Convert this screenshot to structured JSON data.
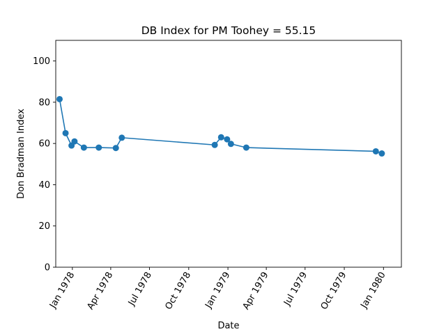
{
  "chart_data": {
    "type": "line",
    "title": "DB Index for PM Toohey = 55.15",
    "xlabel": "Date",
    "ylabel": "Don Bradman Index",
    "ylim": [
      0,
      110
    ],
    "xlim": [
      "1977-11-23",
      "1980-02-12"
    ],
    "grid": false,
    "legend": "none",
    "x_ticks": [
      {
        "date": "1978-01-01",
        "label": "Jan 1978"
      },
      {
        "date": "1978-04-01",
        "label": "Apr 1978"
      },
      {
        "date": "1978-07-01",
        "label": "Jul 1978"
      },
      {
        "date": "1978-10-01",
        "label": "Oct 1978"
      },
      {
        "date": "1979-01-01",
        "label": "Jan 1979"
      },
      {
        "date": "1979-04-01",
        "label": "Apr 1979"
      },
      {
        "date": "1979-07-01",
        "label": "Jul 1979"
      },
      {
        "date": "1979-10-01",
        "label": "Oct 1979"
      },
      {
        "date": "1980-01-01",
        "label": "Jan 1980"
      }
    ],
    "y_ticks": [
      0,
      20,
      40,
      60,
      80,
      100
    ],
    "series": [
      {
        "color": "#1f77b4",
        "points": [
          {
            "x": "1977-12-02",
            "y": 81.5
          },
          {
            "x": "1977-12-16",
            "y": 65.0
          },
          {
            "x": "1977-12-30",
            "y": 59.0
          },
          {
            "x": "1978-01-06",
            "y": 61.0
          },
          {
            "x": "1978-01-28",
            "y": 58.0
          },
          {
            "x": "1978-03-04",
            "y": 58.0
          },
          {
            "x": "1978-04-13",
            "y": 57.8
          },
          {
            "x": "1978-04-27",
            "y": 62.8
          },
          {
            "x": "1978-12-01",
            "y": 59.3
          },
          {
            "x": "1978-12-16",
            "y": 63.0
          },
          {
            "x": "1978-12-30",
            "y": 62.0
          },
          {
            "x": "1979-01-08",
            "y": 59.8
          },
          {
            "x": "1979-02-13",
            "y": 58.0
          },
          {
            "x": "1979-12-14",
            "y": 56.2
          },
          {
            "x": "1979-12-28",
            "y": 55.15
          }
        ]
      }
    ]
  }
}
